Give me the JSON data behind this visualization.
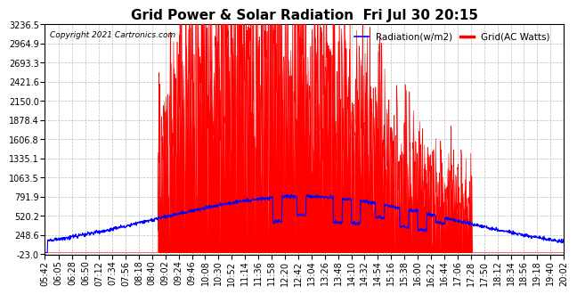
{
  "title": "Grid Power & Solar Radiation  Fri Jul 30 20:15",
  "copyright": "Copyright 2021 Cartronics.com",
  "legend_radiation": "Radiation(w/m2)",
  "legend_grid": "Grid(AC Watts)",
  "y_min": -23.0,
  "y_max": 3236.5,
  "y_ticks": [
    -23.0,
    248.6,
    520.2,
    791.9,
    1063.5,
    1335.1,
    1606.8,
    1878.4,
    2150.0,
    2421.6,
    2693.3,
    2964.9,
    3236.5
  ],
  "grid_color": "#FF0000",
  "radiation_color": "#0000FF",
  "background_color": "#FFFFFF",
  "plot_bg_color": "#FFFFFF",
  "grid_line_color": "#BBBBBB",
  "title_fontsize": 11,
  "axis_fontsize": 7,
  "x_labels": [
    "05:42",
    "06:05",
    "06:28",
    "06:50",
    "07:12",
    "07:34",
    "07:56",
    "08:18",
    "08:40",
    "09:02",
    "09:24",
    "09:46",
    "10:08",
    "10:30",
    "10:52",
    "11:14",
    "11:36",
    "11:58",
    "12:20",
    "12:42",
    "13:04",
    "13:26",
    "13:48",
    "14:10",
    "14:32",
    "14:54",
    "15:16",
    "15:38",
    "16:00",
    "16:22",
    "16:44",
    "17:06",
    "17:28",
    "17:50",
    "18:12",
    "18:34",
    "18:56",
    "19:18",
    "19:40",
    "20:02"
  ]
}
